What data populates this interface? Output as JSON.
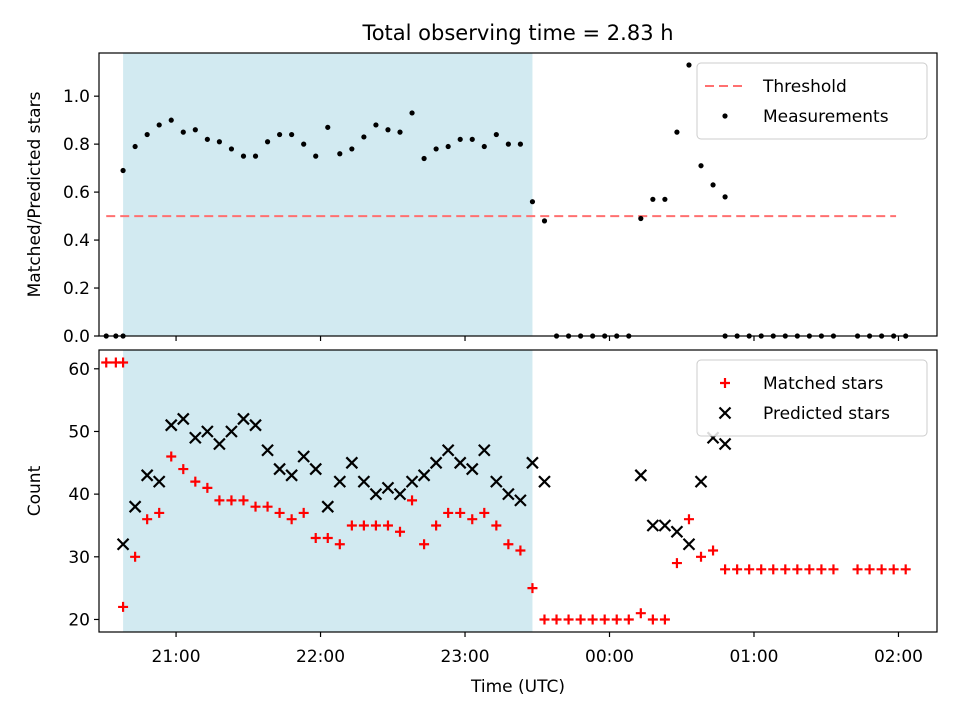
{
  "chart_data": [
    {
      "type": "scatter",
      "title": "Total observing time = 2.83 h",
      "ylabel": "Matched/Predicted stars",
      "ylim": [
        0,
        1.18
      ],
      "yticks": [
        "0.0",
        "0.2",
        "0.4",
        "0.6",
        "0.8",
        "1.0"
      ],
      "xlim": [
        "20:28",
        "02:16"
      ],
      "shaded_interval": [
        "20:38",
        "23:28"
      ],
      "shade_color": "#add8e6",
      "legend_position": "upper right",
      "threshold": {
        "name": "Threshold",
        "y": 0.5,
        "x_start": "20:31",
        "x_end": "01:59",
        "color": "#ff7070"
      },
      "series": [
        {
          "name": "Measurements",
          "color": "#000000",
          "points": [
            [
              "20:31",
              0.0
            ],
            [
              "20:35",
              0.0
            ],
            [
              "20:38",
              0.0
            ],
            [
              "20:38",
              0.69
            ],
            [
              "20:43",
              0.79
            ],
            [
              "20:48",
              0.84
            ],
            [
              "20:53",
              0.88
            ],
            [
              "20:58",
              0.9
            ],
            [
              "21:03",
              0.85
            ],
            [
              "21:08",
              0.86
            ],
            [
              "21:13",
              0.82
            ],
            [
              "21:18",
              0.81
            ],
            [
              "21:23",
              0.78
            ],
            [
              "21:28",
              0.75
            ],
            [
              "21:33",
              0.75
            ],
            [
              "21:38",
              0.81
            ],
            [
              "21:43",
              0.84
            ],
            [
              "21:48",
              0.84
            ],
            [
              "21:53",
              0.8
            ],
            [
              "21:58",
              0.75
            ],
            [
              "22:03",
              0.87
            ],
            [
              "22:08",
              0.76
            ],
            [
              "22:13",
              0.78
            ],
            [
              "22:18",
              0.83
            ],
            [
              "22:23",
              0.88
            ],
            [
              "22:28",
              0.86
            ],
            [
              "22:33",
              0.85
            ],
            [
              "22:38",
              0.93
            ],
            [
              "22:43",
              0.74
            ],
            [
              "22:48",
              0.78
            ],
            [
              "22:53",
              0.79
            ],
            [
              "22:58",
              0.82
            ],
            [
              "23:03",
              0.82
            ],
            [
              "23:08",
              0.79
            ],
            [
              "23:13",
              0.84
            ],
            [
              "23:18",
              0.8
            ],
            [
              "23:23",
              0.8
            ],
            [
              "23:28",
              0.56
            ],
            [
              "23:33",
              0.48
            ],
            [
              "23:38",
              0.0
            ],
            [
              "23:43",
              0.0
            ],
            [
              "23:48",
              0.0
            ],
            [
              "23:53",
              0.0
            ],
            [
              "23:58",
              0.0
            ],
            [
              "00:03",
              0.0
            ],
            [
              "00:08",
              0.0
            ],
            [
              "00:13",
              0.49
            ],
            [
              "00:18",
              0.57
            ],
            [
              "00:23",
              0.57
            ],
            [
              "00:28",
              0.85
            ],
            [
              "00:33",
              1.13
            ],
            [
              "00:38",
              0.71
            ],
            [
              "00:43",
              0.63
            ],
            [
              "00:48",
              0.58
            ],
            [
              "00:48",
              0.0
            ],
            [
              "00:53",
              0.0
            ],
            [
              "00:58",
              0.0
            ],
            [
              "01:03",
              0.0
            ],
            [
              "01:08",
              0.0
            ],
            [
              "01:13",
              0.0
            ],
            [
              "01:18",
              0.0
            ],
            [
              "01:23",
              0.0
            ],
            [
              "01:28",
              0.0
            ],
            [
              "01:33",
              0.0
            ],
            [
              "01:43",
              0.0
            ],
            [
              "01:48",
              0.0
            ],
            [
              "01:53",
              0.0
            ],
            [
              "01:58",
              0.0
            ],
            [
              "02:03",
              0.0
            ]
          ]
        }
      ]
    },
    {
      "type": "scatter",
      "ylabel": "Count",
      "xlabel": "Time (UTC)",
      "ylim": [
        18,
        63
      ],
      "yticks": [
        "20",
        "30",
        "40",
        "50",
        "60"
      ],
      "xlim": [
        "20:28",
        "02:16"
      ],
      "xticks": [
        "21:00",
        "22:00",
        "23:00",
        "00:00",
        "01:00",
        "02:00"
      ],
      "shaded_interval": [
        "20:38",
        "23:28"
      ],
      "shade_color": "#add8e6",
      "legend_position": "upper right",
      "series": [
        {
          "name": "Matched stars",
          "marker": "+",
          "color": "#ff0000",
          "points": [
            [
              "20:31",
              61
            ],
            [
              "20:35",
              61
            ],
            [
              "20:38",
              61
            ],
            [
              "20:38",
              22
            ],
            [
              "20:43",
              30
            ],
            [
              "20:48",
              36
            ],
            [
              "20:53",
              37
            ],
            [
              "20:58",
              46
            ],
            [
              "21:03",
              44
            ],
            [
              "21:08",
              42
            ],
            [
              "21:13",
              41
            ],
            [
              "21:18",
              39
            ],
            [
              "21:23",
              39
            ],
            [
              "21:28",
              39
            ],
            [
              "21:33",
              38
            ],
            [
              "21:38",
              38
            ],
            [
              "21:43",
              37
            ],
            [
              "21:48",
              36
            ],
            [
              "21:53",
              37
            ],
            [
              "21:58",
              33
            ],
            [
              "22:03",
              33
            ],
            [
              "22:08",
              32
            ],
            [
              "22:13",
              35
            ],
            [
              "22:18",
              35
            ],
            [
              "22:23",
              35
            ],
            [
              "22:28",
              35
            ],
            [
              "22:33",
              34
            ],
            [
              "22:38",
              39
            ],
            [
              "22:43",
              32
            ],
            [
              "22:48",
              35
            ],
            [
              "22:53",
              37
            ],
            [
              "22:58",
              37
            ],
            [
              "23:03",
              36
            ],
            [
              "23:08",
              37
            ],
            [
              "23:13",
              35
            ],
            [
              "23:18",
              32
            ],
            [
              "23:23",
              31
            ],
            [
              "23:28",
              25
            ],
            [
              "23:33",
              20
            ],
            [
              "23:38",
              20
            ],
            [
              "23:43",
              20
            ],
            [
              "23:48",
              20
            ],
            [
              "23:53",
              20
            ],
            [
              "23:58",
              20
            ],
            [
              "00:03",
              20
            ],
            [
              "00:08",
              20
            ],
            [
              "00:13",
              21
            ],
            [
              "00:18",
              20
            ],
            [
              "00:23",
              20
            ],
            [
              "00:28",
              29
            ],
            [
              "00:33",
              36
            ],
            [
              "00:38",
              30
            ],
            [
              "00:43",
              31
            ],
            [
              "00:48",
              28
            ],
            [
              "00:53",
              28
            ],
            [
              "00:58",
              28
            ],
            [
              "01:03",
              28
            ],
            [
              "01:08",
              28
            ],
            [
              "01:13",
              28
            ],
            [
              "01:18",
              28
            ],
            [
              "01:23",
              28
            ],
            [
              "01:28",
              28
            ],
            [
              "01:33",
              28
            ],
            [
              "01:43",
              28
            ],
            [
              "01:48",
              28
            ],
            [
              "01:53",
              28
            ],
            [
              "01:58",
              28
            ],
            [
              "02:03",
              28
            ]
          ]
        },
        {
          "name": "Predicted stars",
          "marker": "x",
          "color": "#000000",
          "points": [
            [
              "20:38",
              32
            ],
            [
              "20:43",
              38
            ],
            [
              "20:48",
              43
            ],
            [
              "20:53",
              42
            ],
            [
              "20:58",
              51
            ],
            [
              "21:03",
              52
            ],
            [
              "21:08",
              49
            ],
            [
              "21:13",
              50
            ],
            [
              "21:18",
              48
            ],
            [
              "21:23",
              50
            ],
            [
              "21:28",
              52
            ],
            [
              "21:33",
              51
            ],
            [
              "21:38",
              47
            ],
            [
              "21:43",
              44
            ],
            [
              "21:48",
              43
            ],
            [
              "21:53",
              46
            ],
            [
              "21:58",
              44
            ],
            [
              "22:03",
              38
            ],
            [
              "22:08",
              42
            ],
            [
              "22:13",
              45
            ],
            [
              "22:18",
              42
            ],
            [
              "22:23",
              40
            ],
            [
              "22:28",
              41
            ],
            [
              "22:33",
              40
            ],
            [
              "22:38",
              42
            ],
            [
              "22:43",
              43
            ],
            [
              "22:48",
              45
            ],
            [
              "22:53",
              47
            ],
            [
              "22:58",
              45
            ],
            [
              "23:03",
              44
            ],
            [
              "23:08",
              47
            ],
            [
              "23:13",
              42
            ],
            [
              "23:18",
              40
            ],
            [
              "23:23",
              39
            ],
            [
              "23:28",
              45
            ],
            [
              "23:33",
              42
            ],
            [
              "00:13",
              43
            ],
            [
              "00:18",
              35
            ],
            [
              "00:23",
              35
            ],
            [
              "00:28",
              34
            ],
            [
              "00:33",
              32
            ],
            [
              "00:38",
              42
            ],
            [
              "00:43",
              49
            ],
            [
              "00:48",
              48
            ]
          ]
        }
      ]
    }
  ]
}
